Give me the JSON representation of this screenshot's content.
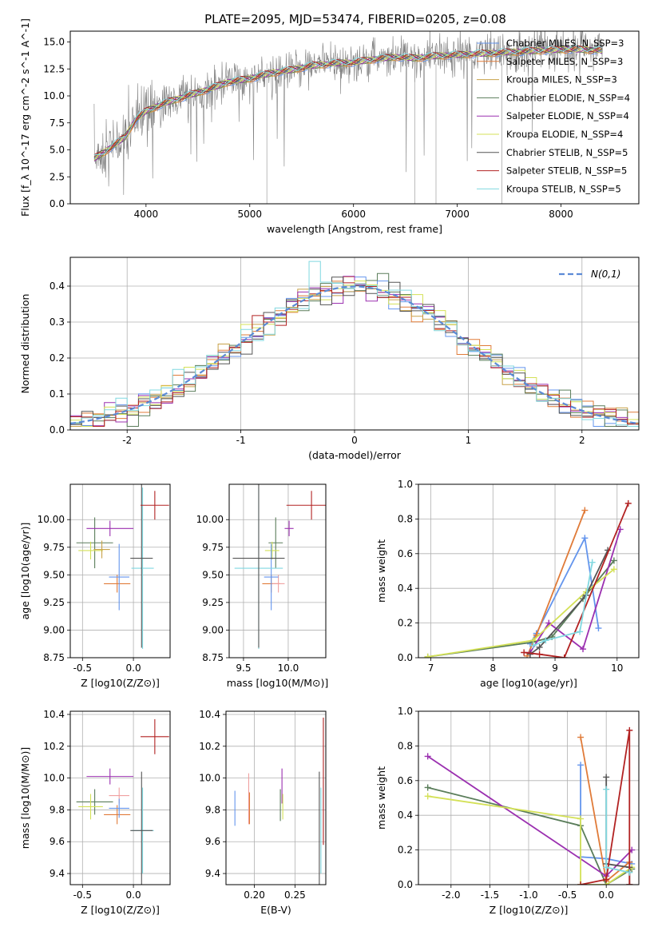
{
  "title": "PLATE=2095, MJD=53474, FIBERID=0205, z=0.08",
  "chart_data": [
    {
      "id": "spectrum",
      "type": "line",
      "xlabel": "wavelength [Angstrom, rest frame]",
      "ylabel": "Flux [f_λ 10^-17 erg cm^-2 s^-1 A^-1]",
      "xlim": [
        3270,
        8750
      ],
      "ylim": [
        0,
        16
      ],
      "xticks": [
        4000,
        5000,
        6000,
        7000,
        8000
      ],
      "yticks": [
        0.0,
        2.5,
        5.0,
        7.5,
        10.0,
        12.5,
        15.0
      ],
      "grid": false,
      "legend_position": "top-right",
      "data_series": {
        "name": "data",
        "color": "#808080",
        "x_range": [
          3500,
          8400
        ]
      },
      "model_points_x": [
        3500,
        3600,
        3700,
        3800,
        3900,
        4000,
        4200,
        4400,
        4600,
        4800,
        5000,
        5200,
        5400,
        5600,
        5800,
        6000,
        6200,
        6400,
        6600,
        6800,
        7000,
        7200,
        7400,
        7600,
        7800,
        8000,
        8200,
        8400
      ],
      "model_points_y": [
        4.2,
        4.8,
        5.5,
        6.2,
        7.8,
        8.6,
        9.4,
        10.0,
        10.6,
        11.3,
        11.6,
        12.1,
        12.4,
        12.8,
        13.0,
        13.1,
        13.4,
        13.6,
        13.5,
        13.7,
        13.8,
        13.9,
        14.0,
        14.1,
        14.2,
        14.3,
        14.3,
        14.2
      ],
      "series": [
        {
          "name": "Chabrier MILES, N_SSP=3",
          "color": "#6495ed"
        },
        {
          "name": "Salpeter MILES, N_SSP=3",
          "color": "#e07b39"
        },
        {
          "name": "Kroupa MILES, N_SSP=3",
          "color": "#c8a24a"
        },
        {
          "name": "Chabrier ELODIE, N_SSP=4",
          "color": "#5a7d5a"
        },
        {
          "name": "Salpeter ELODIE, N_SSP=4",
          "color": "#9b30b0"
        },
        {
          "name": "Kroupa ELODIE, N_SSP=4",
          "color": "#d4e157"
        },
        {
          "name": "Chabrier STELIB, N_SSP=5",
          "color": "#555555"
        },
        {
          "name": "Salpeter STELIB, N_SSP=5",
          "color": "#b22222"
        },
        {
          "name": "Kroupa STELIB, N_SSP=5",
          "color": "#80d8e0"
        }
      ]
    },
    {
      "id": "residuals",
      "type": "line",
      "xlabel": "(data-model)/error",
      "ylabel": "Normed distribution",
      "xlim": [
        -2.5,
        2.5
      ],
      "ylim": [
        0,
        0.48
      ],
      "xticks": [
        -2,
        -1,
        0,
        1,
        2
      ],
      "yticks": [
        0.0,
        0.1,
        0.2,
        0.3,
        0.4
      ],
      "grid": true,
      "legend_position": "top-right",
      "normal_curve": {
        "name": "N(0,1)",
        "color": "#5b8ad6"
      },
      "bin_width": 0.1
    },
    {
      "id": "age-vs-Z",
      "type": "scatter",
      "xlabel": "Z [log10(Z/Z⊙)]",
      "ylabel": "age  [log10(age/yr)]",
      "xlim": [
        -0.62,
        0.36
      ],
      "ylim": [
        8.75,
        10.32
      ],
      "xticks": [
        -0.5,
        0.0
      ],
      "yticks": [
        8.75,
        9.0,
        9.25,
        9.5,
        9.75,
        10.0
      ],
      "grid": true,
      "points": [
        {
          "x": -0.38,
          "y": 9.79,
          "xerr": 0.18,
          "yerr": 0.23,
          "color": "#5a7d5a"
        },
        {
          "x": -0.42,
          "y": 9.72,
          "xerr": 0.12,
          "yerr": 0.08,
          "color": "#d4e157"
        },
        {
          "x": -0.23,
          "y": 9.92,
          "xerr": 0.23,
          "yerr": 0.07,
          "color": "#9b30b0"
        },
        {
          "x": -0.16,
          "y": 9.42,
          "xerr": 0.13,
          "yerr": 0.08,
          "color": "#e07b39"
        },
        {
          "x": -0.14,
          "y": 9.48,
          "xerr": 0.1,
          "yerr": 0.3,
          "color": "#6495ed"
        },
        {
          "x": 0.09,
          "y": 9.56,
          "xerr": 0.11,
          "yerr": 0.73,
          "color": "#80d8e0"
        },
        {
          "x": 0.08,
          "y": 9.65,
          "xerr": 0.11,
          "yerr": 0.81,
          "color": "#555555"
        },
        {
          "x": 0.21,
          "y": 10.13,
          "xerr": 0.14,
          "yerr": 0.13,
          "color": "#b22222"
        },
        {
          "x": -0.31,
          "y": 9.73,
          "xerr": 0.08,
          "yerr": 0.08,
          "color": "#c8a24a"
        }
      ]
    },
    {
      "id": "age-vs-mass",
      "type": "scatter",
      "xlabel": "mass [log10(M/M⊙)]",
      "ylabel": "",
      "xlim": [
        9.34,
        10.42
      ],
      "ylim": [
        8.75,
        10.32
      ],
      "xticks": [
        9.5,
        10.0
      ],
      "yticks": [
        8.75,
        9.0,
        9.25,
        9.5,
        9.75,
        10.0
      ],
      "grid": true,
      "points": [
        {
          "x": 9.86,
          "y": 9.79,
          "xerr": 0.08,
          "yerr": 0.23,
          "color": "#5a7d5a"
        },
        {
          "x": 9.82,
          "y": 9.72,
          "xerr": 0.08,
          "yerr": 0.08,
          "color": "#d4e157"
        },
        {
          "x": 10.01,
          "y": 9.92,
          "xerr": 0.05,
          "yerr": 0.07,
          "color": "#9b30b0"
        },
        {
          "x": 9.81,
          "y": 9.42,
          "xerr": 0.1,
          "yerr": 0.08,
          "color": "#e07b39"
        },
        {
          "x": 9.89,
          "y": 9.42,
          "xerr": 0.07,
          "yerr": 0.08,
          "color": "#f0a0a0"
        },
        {
          "x": 9.81,
          "y": 9.48,
          "xerr": 0.08,
          "yerr": 0.3,
          "color": "#6495ed"
        },
        {
          "x": 9.67,
          "y": 9.56,
          "xerr": 0.27,
          "yerr": 0.73,
          "color": "#80d8e0"
        },
        {
          "x": 9.67,
          "y": 9.65,
          "xerr": 0.29,
          "yerr": 0.81,
          "color": "#555555"
        },
        {
          "x": 10.26,
          "y": 10.13,
          "xerr": 0.28,
          "yerr": 0.13,
          "color": "#b22222"
        }
      ]
    },
    {
      "id": "massweight-vs-age",
      "type": "line",
      "xlabel": "age  [log10(age/yr)]",
      "ylabel": "mass weight",
      "xlim": [
        6.8,
        10.35
      ],
      "ylim": [
        0,
        1.0
      ],
      "xticks": [
        7,
        8,
        9,
        10
      ],
      "yticks": [
        0.0,
        0.2,
        0.4,
        0.6,
        0.8,
        1.0
      ],
      "grid": true,
      "series": [
        {
          "name": "Chabrier MILES",
          "color": "#6495ed",
          "x": [
            8.6,
            8.7,
            9.48,
            9.7
          ],
          "y": [
            0.08,
            0.14,
            0.69,
            0.17
          ]
        },
        {
          "name": "Salpeter MILES",
          "color": "#e07b39",
          "x": [
            8.55,
            8.7,
            9.48
          ],
          "y": [
            0.01,
            0.13,
            0.85
          ]
        },
        {
          "name": "Chabrier ELODIE",
          "color": "#5a7d5a",
          "x": [
            6.95,
            8.65,
            8.95,
            9.45,
            9.95
          ],
          "y": [
            0.005,
            0.09,
            0.12,
            0.34,
            0.56
          ]
        },
        {
          "name": "Salpeter ELODIE",
          "color": "#9b30b0",
          "x": [
            8.6,
            8.9,
            9.45,
            10.05
          ],
          "y": [
            0.03,
            0.2,
            0.05,
            0.74
          ]
        },
        {
          "name": "Kroupa ELODIE",
          "color": "#d4e157",
          "x": [
            6.95,
            8.65,
            9.5,
            9.95
          ],
          "y": [
            0.005,
            0.1,
            0.38,
            0.51
          ]
        },
        {
          "name": "Chabrier STELIB",
          "color": "#555555",
          "x": [
            8.6,
            8.75,
            9.5,
            9.85
          ],
          "y": [
            0.02,
            0.06,
            0.36,
            0.62
          ]
        },
        {
          "name": "Salpeter STELIB",
          "color": "#b22222",
          "x": [
            8.5,
            8.75,
            9.15,
            10.18
          ],
          "y": [
            0.03,
            0.02,
            0.0,
            0.89
          ]
        },
        {
          "name": "Kroupa STELIB",
          "color": "#80d8e0",
          "x": [
            8.65,
            8.85,
            9.4,
            9.6
          ],
          "y": [
            0.07,
            0.1,
            0.15,
            0.55
          ]
        }
      ]
    },
    {
      "id": "mass-vs-Z",
      "type": "scatter",
      "xlabel": "Z [log10(Z/Z⊙)]",
      "ylabel": "mass [log10(M/M⊙)]",
      "xlim": [
        -0.62,
        0.36
      ],
      "ylim": [
        9.33,
        10.42
      ],
      "xticks": [
        -0.5,
        0.0
      ],
      "yticks": [
        9.4,
        9.6,
        9.8,
        10.0,
        10.2,
        10.4
      ],
      "grid": true,
      "points": [
        {
          "x": -0.38,
          "y": 9.85,
          "xerr": 0.18,
          "yerr": 0.08,
          "color": "#5a7d5a"
        },
        {
          "x": -0.42,
          "y": 9.82,
          "xerr": 0.12,
          "yerr": 0.08,
          "color": "#d4e157"
        },
        {
          "x": -0.23,
          "y": 10.01,
          "xerr": 0.23,
          "yerr": 0.05,
          "color": "#9b30b0"
        },
        {
          "x": -0.16,
          "y": 9.77,
          "xerr": 0.13,
          "yerr": 0.06,
          "color": "#e07b39"
        },
        {
          "x": -0.14,
          "y": 9.89,
          "xerr": 0.1,
          "yerr": 0.05,
          "color": "#f0a0a0"
        },
        {
          "x": -0.14,
          "y": 9.81,
          "xerr": 0.1,
          "yerr": 0.06,
          "color": "#6495ed"
        },
        {
          "x": 0.09,
          "y": 9.67,
          "xerr": 0.11,
          "yerr": 0.27,
          "color": "#80d8e0"
        },
        {
          "x": 0.08,
          "y": 9.67,
          "xerr": 0.11,
          "yerr": 0.37,
          "color": "#555555"
        },
        {
          "x": 0.21,
          "y": 10.26,
          "xerr": 0.14,
          "yerr": 0.11,
          "color": "#b22222"
        }
      ]
    },
    {
      "id": "mass-vs-EBV",
      "type": "scatter",
      "xlabel": "E(B-V)",
      "ylabel": "",
      "xlim": [
        0.165,
        0.288
      ],
      "ylim": [
        9.33,
        10.42
      ],
      "xticks": [
        0.2,
        0.25
      ],
      "yticks": [
        9.4,
        9.6,
        9.8,
        10.0,
        10.2,
        10.4
      ],
      "grid": true,
      "points": [
        {
          "x": 0.176,
          "y": 9.81,
          "yerr": 0.11,
          "color": "#6495ed"
        },
        {
          "x": 0.193,
          "y": 9.87,
          "yerr": 0.16,
          "color": "#f0a0a0"
        },
        {
          "x": 0.194,
          "y": 9.81,
          "yerr": 0.1,
          "color": "#e07b39"
        },
        {
          "x": 0.232,
          "y": 9.83,
          "yerr": 0.1,
          "color": "#5a7d5a"
        },
        {
          "x": 0.234,
          "y": 9.95,
          "yerr": 0.11,
          "color": "#9b30b0"
        },
        {
          "x": 0.235,
          "y": 9.82,
          "yerr": 0.08,
          "color": "#d4e157"
        },
        {
          "x": 0.28,
          "y": 9.67,
          "yerr": 0.37,
          "color": "#555555"
        },
        {
          "x": 0.282,
          "y": 9.67,
          "yerr": 0.27,
          "color": "#80d8e0"
        },
        {
          "x": 0.285,
          "y": 9.98,
          "yerr": 0.4,
          "color": "#b22222"
        }
      ]
    },
    {
      "id": "massweight-vs-Z",
      "type": "line",
      "xlabel": "Z [log10(Z/Z⊙)]",
      "ylabel": "mass weight",
      "xlim": [
        -2.42,
        0.42
      ],
      "ylim": [
        0,
        1.0
      ],
      "xticks": [
        -2.0,
        -1.5,
        -1.0,
        -0.5,
        0.0
      ],
      "yticks": [
        0.0,
        0.2,
        0.4,
        0.6,
        0.8,
        1.0
      ],
      "grid": true,
      "series": [
        {
          "name": "Chabrier MILES",
          "color": "#6495ed",
          "x": [
            -0.33,
            -0.33,
            0.0,
            0.33
          ],
          "y": [
            0.69,
            0.16,
            0.15,
            0.12
          ]
        },
        {
          "name": "Salpeter MILES",
          "color": "#e07b39",
          "x": [
            -0.33,
            0.0,
            0.3
          ],
          "y": [
            0.85,
            0.02,
            0.13
          ]
        },
        {
          "name": "Chabrier ELODIE",
          "color": "#5a7d5a",
          "x": [
            -2.3,
            -0.33,
            0.0,
            0.33
          ],
          "y": [
            0.56,
            0.34,
            0.0,
            0.09
          ]
        },
        {
          "name": "Salpeter ELODIE",
          "color": "#9b30b0",
          "x": [
            -2.3,
            0.0,
            0.33
          ],
          "y": [
            0.74,
            0.05,
            0.2
          ]
        },
        {
          "name": "Kroupa ELODIE",
          "color": "#d4e157",
          "x": [
            -2.3,
            -0.33,
            -0.33,
            0.0,
            0.33
          ],
          "y": [
            0.51,
            0.38,
            0.0,
            0.0,
            0.1
          ]
        },
        {
          "name": "Chabrier STELIB",
          "color": "#555555",
          "x": [
            0.0,
            0.0,
            0.3,
            0.3
          ],
          "y": [
            0.62,
            0.12,
            0.1,
            0.0
          ]
        },
        {
          "name": "Salpeter STELIB",
          "color": "#b22222",
          "x": [
            -0.33,
            0.0,
            0.3,
            0.3
          ],
          "y": [
            0.0,
            0.03,
            0.89,
            0.0
          ]
        },
        {
          "name": "Kroupa STELIB",
          "color": "#80d8e0",
          "x": [
            0.0,
            0.0,
            0.3
          ],
          "y": [
            0.55,
            0.1,
            0.07
          ]
        }
      ]
    }
  ]
}
